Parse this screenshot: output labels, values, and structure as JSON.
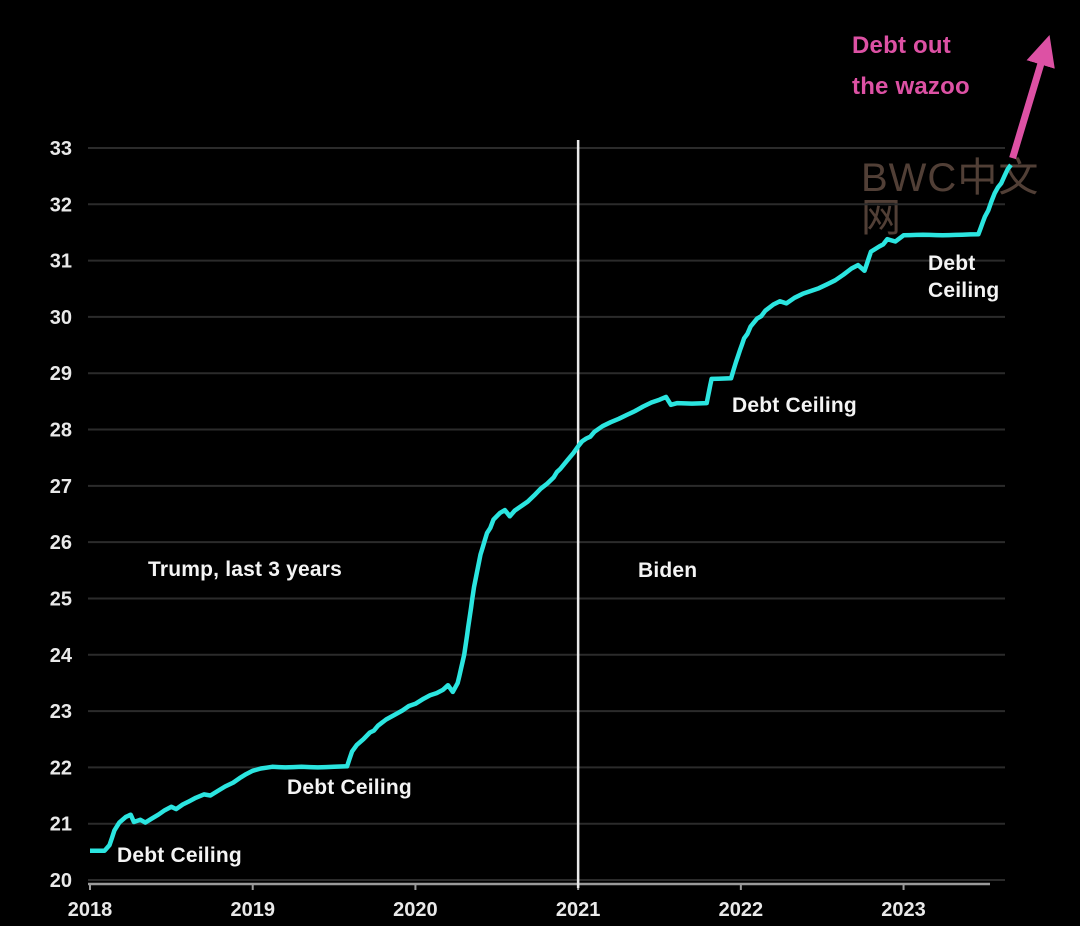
{
  "colors": {
    "background": "#000000",
    "line": "#2be5e0",
    "accent_magenta": "#dd51a4",
    "grid": "#2b2b2b",
    "axis": "#9a9a9a",
    "tick_label": "#e9e9e9",
    "annotation_text": "#f4f4f4",
    "divider": "#e8e8e8",
    "watermark": "#5a463c"
  },
  "watermark": "BWC中文网",
  "annotations": {
    "debt_ceiling_2018": "Debt Ceiling",
    "debt_ceiling_2019": "Debt Ceiling",
    "debt_ceiling_2021": "Debt Ceiling",
    "debt_ceiling_2023_line1": "Debt",
    "debt_ceiling_2023_line2": "Ceiling",
    "trump": "Trump, last 3 years",
    "biden": "Biden",
    "wazoo_line1": "Debt out",
    "wazoo_line2": "the wazoo"
  },
  "chart_data": {
    "type": "line",
    "title": "",
    "xlabel": "",
    "ylabel": "",
    "x_ticks": [
      2018,
      2019,
      2020,
      2021,
      2022,
      2023
    ],
    "y_ticks": [
      20,
      21,
      22,
      23,
      24,
      25,
      26,
      27,
      28,
      29,
      30,
      31,
      32,
      33
    ],
    "xlim": [
      2018,
      2023.9
    ],
    "ylim": [
      20,
      33
    ],
    "grid": true,
    "legend": false,
    "divider_x": 2021,
    "arrow": {
      "from": [
        2023.67,
        32.82
      ],
      "to": [
        2023.86,
        34.65
      ]
    },
    "series": [
      {
        "color": "#2be5e0",
        "points": [
          [
            2018.0,
            20.52
          ],
          [
            2018.09,
            20.52
          ],
          [
            2018.12,
            20.62
          ],
          [
            2018.15,
            20.88
          ],
          [
            2018.18,
            21.02
          ],
          [
            2018.22,
            21.12
          ],
          [
            2018.25,
            21.16
          ],
          [
            2018.27,
            21.03
          ],
          [
            2018.31,
            21.07
          ],
          [
            2018.34,
            21.02
          ],
          [
            2018.38,
            21.09
          ],
          [
            2018.42,
            21.16
          ],
          [
            2018.46,
            21.24
          ],
          [
            2018.5,
            21.3
          ],
          [
            2018.53,
            21.26
          ],
          [
            2018.57,
            21.34
          ],
          [
            2018.61,
            21.4
          ],
          [
            2018.65,
            21.46
          ],
          [
            2018.7,
            21.52
          ],
          [
            2018.74,
            21.5
          ],
          [
            2018.79,
            21.59
          ],
          [
            2018.83,
            21.66
          ],
          [
            2018.88,
            21.73
          ],
          [
            2018.92,
            21.81
          ],
          [
            2018.96,
            21.88
          ],
          [
            2019.0,
            21.94
          ],
          [
            2019.05,
            21.98
          ],
          [
            2019.12,
            22.01
          ],
          [
            2019.2,
            22.0
          ],
          [
            2019.3,
            22.01
          ],
          [
            2019.4,
            22.0
          ],
          [
            2019.5,
            22.01
          ],
          [
            2019.58,
            22.02
          ],
          [
            2019.61,
            22.28
          ],
          [
            2019.64,
            22.4
          ],
          [
            2019.68,
            22.5
          ],
          [
            2019.72,
            22.62
          ],
          [
            2019.77,
            22.74
          ],
          [
            2019.82,
            22.85
          ],
          [
            2019.87,
            22.93
          ],
          [
            2019.92,
            23.01
          ],
          [
            2019.96,
            23.09
          ],
          [
            2020.0,
            23.13
          ],
          [
            2020.05,
            23.22
          ],
          [
            2020.09,
            23.28
          ],
          [
            2020.13,
            23.32
          ],
          [
            2020.17,
            23.38
          ],
          [
            2020.2,
            23.46
          ],
          [
            2020.23,
            23.34
          ],
          [
            2020.26,
            23.5
          ],
          [
            2020.3,
            24.0
          ],
          [
            2020.33,
            24.6
          ],
          [
            2020.36,
            25.2
          ],
          [
            2020.4,
            25.78
          ],
          [
            2020.44,
            26.16
          ],
          [
            2020.48,
            26.4
          ],
          [
            2020.52,
            26.52
          ],
          [
            2020.55,
            26.57
          ],
          [
            2020.58,
            26.46
          ],
          [
            2020.61,
            26.56
          ],
          [
            2020.65,
            26.64
          ],
          [
            2020.69,
            26.72
          ],
          [
            2020.73,
            26.83
          ],
          [
            2020.77,
            26.95
          ],
          [
            2020.81,
            27.04
          ],
          [
            2020.85,
            27.15
          ],
          [
            2020.89,
            27.3
          ],
          [
            2020.93,
            27.44
          ],
          [
            2020.97,
            27.58
          ],
          [
            2021.0,
            27.7
          ],
          [
            2021.05,
            27.84
          ],
          [
            2021.1,
            27.96
          ],
          [
            2021.15,
            28.06
          ],
          [
            2021.2,
            28.13
          ],
          [
            2021.25,
            28.19
          ],
          [
            2021.3,
            28.26
          ],
          [
            2021.35,
            28.33
          ],
          [
            2021.4,
            28.41
          ],
          [
            2021.45,
            28.48
          ],
          [
            2021.5,
            28.53
          ],
          [
            2021.54,
            28.58
          ],
          [
            2021.57,
            28.44
          ],
          [
            2021.61,
            28.47
          ],
          [
            2021.7,
            28.46
          ],
          [
            2021.79,
            28.47
          ],
          [
            2021.82,
            28.9
          ],
          [
            2021.94,
            28.91
          ],
          [
            2021.97,
            29.2
          ],
          [
            2022.02,
            29.62
          ],
          [
            2022.06,
            29.83
          ],
          [
            2022.1,
            29.97
          ],
          [
            2022.15,
            30.11
          ],
          [
            2022.2,
            30.22
          ],
          [
            2022.24,
            30.28
          ],
          [
            2022.28,
            30.24
          ],
          [
            2022.33,
            30.34
          ],
          [
            2022.38,
            30.41
          ],
          [
            2022.43,
            30.46
          ],
          [
            2022.48,
            30.51
          ],
          [
            2022.53,
            30.58
          ],
          [
            2022.58,
            30.65
          ],
          [
            2022.63,
            30.75
          ],
          [
            2022.68,
            30.86
          ],
          [
            2022.72,
            30.92
          ],
          [
            2022.76,
            30.82
          ],
          [
            2022.8,
            31.16
          ],
          [
            2022.85,
            31.25
          ],
          [
            2022.9,
            31.38
          ],
          [
            2022.95,
            31.34
          ],
          [
            2023.0,
            31.45
          ],
          [
            2023.12,
            31.46
          ],
          [
            2023.24,
            31.45
          ],
          [
            2023.36,
            31.46
          ],
          [
            2023.46,
            31.47
          ],
          [
            2023.5,
            31.78
          ],
          [
            2023.54,
            32.05
          ],
          [
            2023.58,
            32.3
          ],
          [
            2023.62,
            32.5
          ],
          [
            2023.66,
            32.7
          ]
        ]
      }
    ]
  }
}
